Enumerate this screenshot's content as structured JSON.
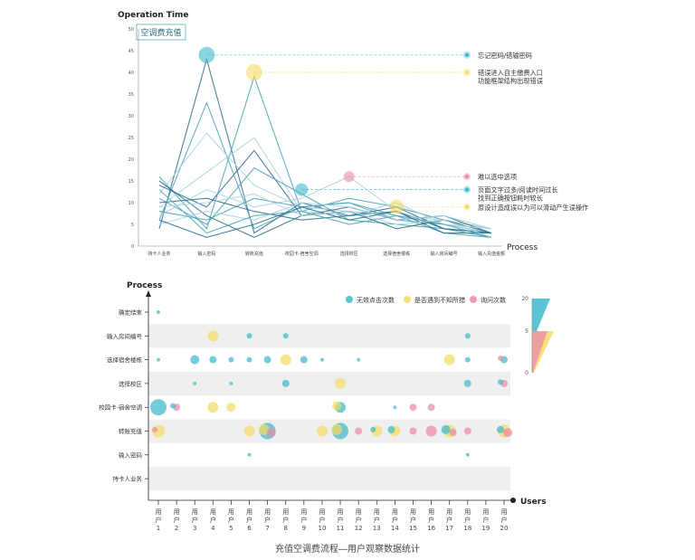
{
  "colors": {
    "teal": "#3fb9cc",
    "yellow": "#f3dc64",
    "pink": "#e98aa8",
    "line_dark": "#2c6f8a",
    "line_mid": "#4aa3b8",
    "line_light": "#a9d3de",
    "band": "#efefef"
  },
  "caption": "充值空调费流程—用户观察数据统计",
  "chart_data": [
    {
      "type": "line",
      "title": "空调费充值",
      "ylabel": "Operation Time",
      "xlabel": "Process",
      "ylim": [
        0,
        50
      ],
      "yticks": [
        0,
        5,
        10,
        15,
        20,
        25,
        30,
        35,
        40,
        45,
        50
      ],
      "categories": [
        "持卡人业务",
        "输入密码",
        "转账充值",
        "校园卡-宿舍空调",
        "选择校区",
        "选择宿舍楼栋",
        "输入房间编号",
        "输入充值金额"
      ],
      "series": [
        {
          "name": "用户1",
          "tone": "dark",
          "values": [
            4,
            43,
            3,
            10,
            7,
            8,
            4,
            3
          ]
        },
        {
          "name": "用户2",
          "tone": "mid",
          "values": [
            6,
            33,
            4,
            9,
            10,
            6,
            5,
            3
          ]
        },
        {
          "name": "用户3",
          "tone": "mid",
          "values": [
            16,
            4,
            39,
            8,
            11,
            9,
            6,
            4
          ]
        },
        {
          "name": "用户4",
          "tone": "light",
          "values": [
            12,
            26,
            14,
            9,
            8,
            7,
            6,
            4
          ]
        },
        {
          "name": "用户5",
          "tone": "dark",
          "values": [
            14,
            9,
            22,
            7,
            9,
            6,
            7,
            3
          ]
        },
        {
          "name": "用户6",
          "tone": "light",
          "values": [
            9,
            17,
            25,
            8,
            7,
            10,
            5,
            3
          ]
        },
        {
          "name": "用户7",
          "tone": "mid",
          "values": [
            11,
            5,
            18,
            12,
            6,
            5,
            4,
            2
          ]
        },
        {
          "name": "用户8",
          "tone": "dark",
          "values": [
            15,
            7,
            2,
            7,
            8,
            4,
            6,
            3
          ]
        },
        {
          "name": "用户9",
          "tone": "light",
          "values": [
            7,
            13,
            9,
            11,
            16,
            8,
            5,
            4
          ]
        },
        {
          "name": "用户10",
          "tone": "mid",
          "values": [
            8,
            6,
            11,
            9,
            10,
            7,
            3,
            2
          ]
        },
        {
          "name": "用户11",
          "tone": "dark",
          "values": [
            10,
            11,
            8,
            6,
            7,
            9,
            4,
            3
          ]
        },
        {
          "name": "用户12",
          "tone": "light",
          "values": [
            5,
            8,
            6,
            10,
            9,
            6,
            7,
            4
          ]
        },
        {
          "name": "用户13",
          "tone": "mid",
          "values": [
            13,
            3,
            7,
            8,
            5,
            7,
            5,
            2
          ]
        },
        {
          "name": "用户14",
          "tone": "dark",
          "values": [
            6,
            2,
            5,
            9,
            6,
            8,
            3,
            3
          ]
        },
        {
          "name": "用户15",
          "tone": "light",
          "values": [
            9,
            10,
            12,
            7,
            8,
            5,
            6,
            2
          ]
        }
      ],
      "markers": [
        {
          "category": 1,
          "value": 44,
          "color": "teal",
          "size": 9
        },
        {
          "category": 2,
          "value": 40,
          "color": "yellow",
          "size": 9
        },
        {
          "category": 3,
          "value": 13,
          "color": "teal",
          "size": 7
        },
        {
          "category": 4,
          "value": 16,
          "color": "pink",
          "size": 6
        },
        {
          "category": 5,
          "value": 9,
          "color": "yellow",
          "size": 8
        }
      ],
      "annotations": [
        {
          "value": 44,
          "color": "teal",
          "lines": [
            "忘记密码/错输密码"
          ]
        },
        {
          "value": 40,
          "color": "yellow",
          "lines": [
            "错误进入自主缴费入口",
            "功能框架结构出现错误"
          ]
        },
        {
          "value": 16,
          "color": "pink",
          "lines": [
            "难以选中选项"
          ]
        },
        {
          "value": 13,
          "color": "teal",
          "lines": [
            "页面文字过多/阅读时间过长",
            "找到正确按钮耗时较长"
          ]
        },
        {
          "value": 9,
          "color": "yellow",
          "lines": [
            "原设计造成误以为可以滑动产生误操作"
          ]
        }
      ]
    },
    {
      "type": "scatter",
      "ylabel": "Process",
      "xlabel": "Users",
      "legend": [
        {
          "label": "无效点击次数",
          "color": "teal"
        },
        {
          "label": "是否遇到不知所措",
          "color": "yellow"
        },
        {
          "label": "询问次数",
          "color": "pink"
        }
      ],
      "steps": [
        "确定结束",
        "输入房间编号",
        "选择宿舍楼栋",
        "选择校区",
        "校园卡-宿舍空调",
        "转账充值",
        "输入密码",
        "持卡人业务"
      ],
      "users": [
        "用户1",
        "用户2",
        "用户3",
        "用户4",
        "用户5",
        "用户6",
        "用户7",
        "用户8",
        "用户9",
        "用户10",
        "用户11",
        "用户12",
        "用户13",
        "用户14",
        "用户15",
        "用户16",
        "用户17",
        "用户18",
        "用户19",
        "用户20"
      ],
      "points": [
        {
          "user": 1,
          "step": 0,
          "color": "teal",
          "size": 2
        },
        {
          "user": 1,
          "step": 2,
          "color": "teal",
          "size": 2
        },
        {
          "user": 1,
          "step": 4,
          "color": "teal",
          "size": 9
        },
        {
          "user": 1,
          "step": 5,
          "color": "yellow",
          "size": 7
        },
        {
          "user": 1,
          "step": 5,
          "color": "pink",
          "size": 3
        },
        {
          "user": 2,
          "step": 4,
          "color": "pink",
          "size": 4
        },
        {
          "user": 2,
          "step": 4,
          "color": "teal",
          "size": 3
        },
        {
          "user": 3,
          "step": 2,
          "color": "teal",
          "size": 5
        },
        {
          "user": 3,
          "step": 3,
          "color": "teal",
          "size": 2
        },
        {
          "user": 4,
          "step": 1,
          "color": "yellow",
          "size": 6
        },
        {
          "user": 4,
          "step": 2,
          "color": "teal",
          "size": 4
        },
        {
          "user": 4,
          "step": 4,
          "color": "yellow",
          "size": 6
        },
        {
          "user": 5,
          "step": 2,
          "color": "teal",
          "size": 3
        },
        {
          "user": 5,
          "step": 4,
          "color": "yellow",
          "size": 5
        },
        {
          "user": 5,
          "step": 3,
          "color": "teal",
          "size": 2
        },
        {
          "user": 6,
          "step": 1,
          "color": "teal",
          "size": 3
        },
        {
          "user": 6,
          "step": 2,
          "color": "teal",
          "size": 3
        },
        {
          "user": 6,
          "step": 5,
          "color": "yellow",
          "size": 6
        },
        {
          "user": 6,
          "step": 6,
          "color": "teal",
          "size": 2
        },
        {
          "user": 7,
          "step": 2,
          "color": "teal",
          "size": 4
        },
        {
          "user": 7,
          "step": 5,
          "color": "teal",
          "size": 9
        },
        {
          "user": 7,
          "step": 5,
          "color": "yellow",
          "size": 6
        },
        {
          "user": 7,
          "step": 5,
          "color": "pink",
          "size": 5
        },
        {
          "user": 8,
          "step": 1,
          "color": "teal",
          "size": 3
        },
        {
          "user": 8,
          "step": 2,
          "color": "yellow",
          "size": 6
        },
        {
          "user": 8,
          "step": 3,
          "color": "teal",
          "size": 4
        },
        {
          "user": 9,
          "step": 2,
          "color": "teal",
          "size": 4
        },
        {
          "user": 10,
          "step": 2,
          "color": "teal",
          "size": 2
        },
        {
          "user": 10,
          "step": 5,
          "color": "yellow",
          "size": 6
        },
        {
          "user": 11,
          "step": 3,
          "color": "yellow",
          "size": 6
        },
        {
          "user": 11,
          "step": 4,
          "color": "teal",
          "size": 6
        },
        {
          "user": 11,
          "step": 4,
          "color": "yellow",
          "size": 5
        },
        {
          "user": 11,
          "step": 5,
          "color": "teal",
          "size": 9
        },
        {
          "user": 11,
          "step": 5,
          "color": "yellow",
          "size": 6
        },
        {
          "user": 12,
          "step": 2,
          "color": "teal",
          "size": 2
        },
        {
          "user": 12,
          "step": 5,
          "color": "pink",
          "size": 4
        },
        {
          "user": 13,
          "step": 5,
          "color": "yellow",
          "size": 6
        },
        {
          "user": 13,
          "step": 5,
          "color": "teal",
          "size": 3
        },
        {
          "user": 14,
          "step": 4,
          "color": "teal",
          "size": 2
        },
        {
          "user": 14,
          "step": 5,
          "color": "yellow",
          "size": 6
        },
        {
          "user": 14,
          "step": 5,
          "color": "teal",
          "size": 4
        },
        {
          "user": 15,
          "step": 4,
          "color": "pink",
          "size": 4
        },
        {
          "user": 15,
          "step": 5,
          "color": "pink",
          "size": 4
        },
        {
          "user": 16,
          "step": 4,
          "color": "pink",
          "size": 4
        },
        {
          "user": 16,
          "step": 5,
          "color": "pink",
          "size": 6
        },
        {
          "user": 17,
          "step": 2,
          "color": "yellow",
          "size": 6
        },
        {
          "user": 17,
          "step": 5,
          "color": "yellow",
          "size": 7
        },
        {
          "user": 17,
          "step": 5,
          "color": "teal",
          "size": 5
        },
        {
          "user": 17,
          "step": 5,
          "color": "pink",
          "size": 4
        },
        {
          "user": 18,
          "step": 1,
          "color": "teal",
          "size": 3
        },
        {
          "user": 18,
          "step": 2,
          "color": "teal",
          "size": 3
        },
        {
          "user": 18,
          "step": 3,
          "color": "teal",
          "size": 4
        },
        {
          "user": 18,
          "step": 5,
          "color": "pink",
          "size": 4
        },
        {
          "user": 18,
          "step": 6,
          "color": "teal",
          "size": 2
        },
        {
          "user": 20,
          "step": 2,
          "color": "teal",
          "size": 4
        },
        {
          "user": 20,
          "step": 2,
          "color": "pink",
          "size": 3
        },
        {
          "user": 20,
          "step": 3,
          "color": "pink",
          "size": 4
        },
        {
          "user": 20,
          "step": 3,
          "color": "teal",
          "size": 3
        },
        {
          "user": 20,
          "step": 5,
          "color": "yellow",
          "size": 7
        },
        {
          "user": 20,
          "step": 5,
          "color": "teal",
          "size": 4
        },
        {
          "user": 20,
          "step": 5,
          "color": "pink",
          "size": 5
        }
      ],
      "size_scale": {
        "ticks": [
          0,
          5,
          20
        ]
      }
    }
  ]
}
